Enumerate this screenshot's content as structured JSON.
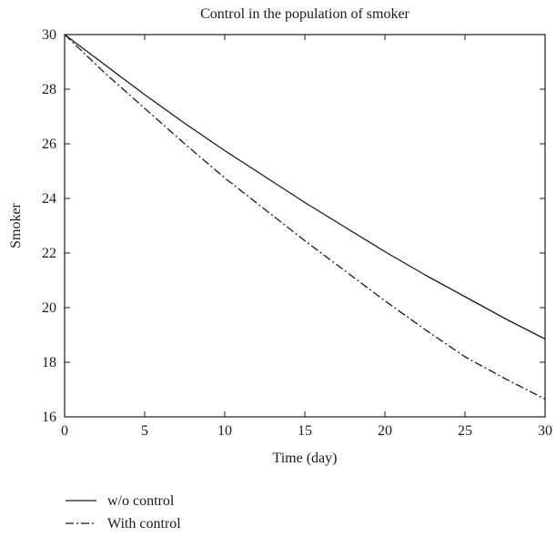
{
  "chart_data": {
    "type": "line",
    "title": "Control in the population of smoker",
    "xlabel": "Time (day)",
    "ylabel": "Smoker",
    "xlim": [
      0,
      30
    ],
    "ylim": [
      16,
      30
    ],
    "x_ticks": [
      0,
      5,
      10,
      15,
      20,
      25,
      30
    ],
    "y_ticks": [
      16,
      18,
      20,
      22,
      24,
      26,
      28,
      30
    ],
    "x_tick_labels": [
      "0",
      "5",
      "10",
      "15",
      "20",
      "25",
      "30"
    ],
    "y_tick_labels": [
      "16",
      "18",
      "20",
      "22",
      "24",
      "26",
      "28",
      "30"
    ],
    "grid": false,
    "legend_position": "below",
    "x": [
      0,
      2.5,
      5,
      7.5,
      10,
      12.5,
      15,
      17.5,
      20,
      22.5,
      25,
      27.5,
      30
    ],
    "series": [
      {
        "name": "w/o control",
        "line_style": "solid",
        "color": "#1a1a1a",
        "values": [
          30.0,
          28.9,
          27.8,
          26.75,
          25.75,
          24.8,
          23.85,
          22.95,
          22.05,
          21.2,
          20.4,
          19.6,
          18.85
        ]
      },
      {
        "name": "With control",
        "line_style": "dash-dot",
        "color": "#1a1a1a",
        "values": [
          30.0,
          28.6,
          27.3,
          26.0,
          24.75,
          23.6,
          22.45,
          21.35,
          20.25,
          19.2,
          18.2,
          17.4,
          16.65
        ]
      }
    ]
  }
}
